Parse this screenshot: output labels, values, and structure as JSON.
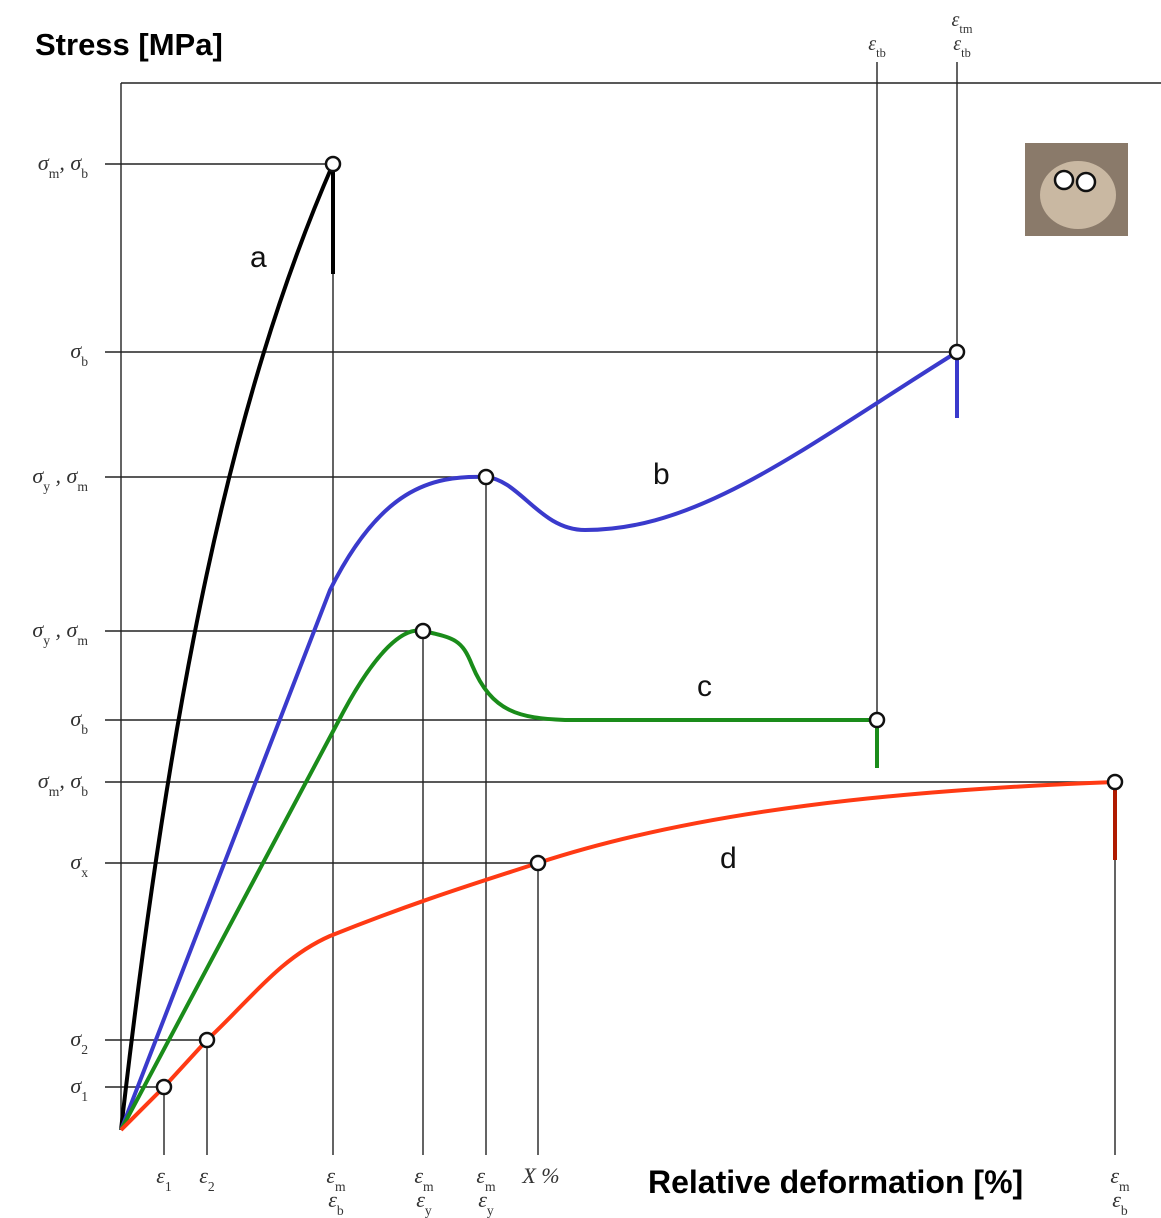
{
  "y_axis_title": "Stress [MPa]",
  "x_axis_title": "Relative deformation [%]",
  "curve_labels": [
    "a",
    "b",
    "c",
    "d"
  ],
  "y_labels": [
    {
      "lines": [
        [
          {
            "text": "σ"
          },
          {
            "sub": "m"
          },
          {
            "text": ", σ"
          },
          {
            "sub": "b"
          }
        ]
      ]
    },
    {
      "lines": [
        [
          {
            "text": "σ"
          },
          {
            "sub": "b"
          }
        ]
      ]
    },
    {
      "lines": [
        [
          {
            "text": "σ"
          },
          {
            "sub": "y"
          },
          {
            "text": " , σ"
          },
          {
            "sub": "m"
          }
        ]
      ]
    },
    {
      "lines": [
        [
          {
            "text": "σ"
          },
          {
            "sub": "y"
          },
          {
            "text": " , σ"
          },
          {
            "sub": "m"
          }
        ]
      ]
    },
    {
      "lines": [
        [
          {
            "text": "σ"
          },
          {
            "sub": "b"
          }
        ]
      ]
    },
    {
      "lines": [
        [
          {
            "text": "σ"
          },
          {
            "sub": "m"
          },
          {
            "text": ", σ"
          },
          {
            "sub": "b"
          }
        ]
      ]
    },
    {
      "lines": [
        [
          {
            "text": "σ"
          },
          {
            "sub": "x"
          }
        ]
      ]
    },
    {
      "lines": [
        [
          {
            "text": "σ"
          },
          {
            "sub": "2"
          }
        ]
      ]
    },
    {
      "lines": [
        [
          {
            "text": "σ"
          },
          {
            "sub": "1"
          }
        ]
      ]
    }
  ],
  "x_labels": [
    {
      "lines": [
        [
          {
            "text": "ε"
          },
          {
            "sub": "1"
          }
        ]
      ]
    },
    {
      "lines": [
        [
          {
            "text": "ε"
          },
          {
            "sub": "2"
          }
        ]
      ]
    },
    {
      "lines": [
        [
          {
            "text": "ε"
          },
          {
            "sub": "m"
          }
        ],
        [
          {
            "text": "ε"
          },
          {
            "sub": "b"
          }
        ]
      ]
    },
    {
      "lines": [
        [
          {
            "text": "ε"
          },
          {
            "sub": "m"
          }
        ],
        [
          {
            "text": "ε"
          },
          {
            "sub": "y"
          }
        ]
      ]
    },
    {
      "lines": [
        [
          {
            "text": "ε"
          },
          {
            "sub": "m"
          }
        ],
        [
          {
            "text": "ε"
          },
          {
            "sub": "y"
          }
        ]
      ]
    },
    {
      "lines": [
        [
          {
            "text": "X %"
          }
        ]
      ]
    },
    {
      "lines": [
        [
          {
            "text": "ε"
          },
          {
            "sub": "m"
          }
        ],
        [
          {
            "text": "ε"
          },
          {
            "sub": "b"
          }
        ]
      ]
    }
  ],
  "top_labels": [
    {
      "lines": [
        [
          {
            "text": "ε"
          },
          {
            "sub": "tb"
          }
        ]
      ]
    },
    {
      "lines": [
        [
          {
            "text": "ε"
          },
          {
            "sub": "tm"
          }
        ],
        [
          {
            "text": "ε"
          },
          {
            "sub": "tb"
          }
        ]
      ]
    }
  ]
}
